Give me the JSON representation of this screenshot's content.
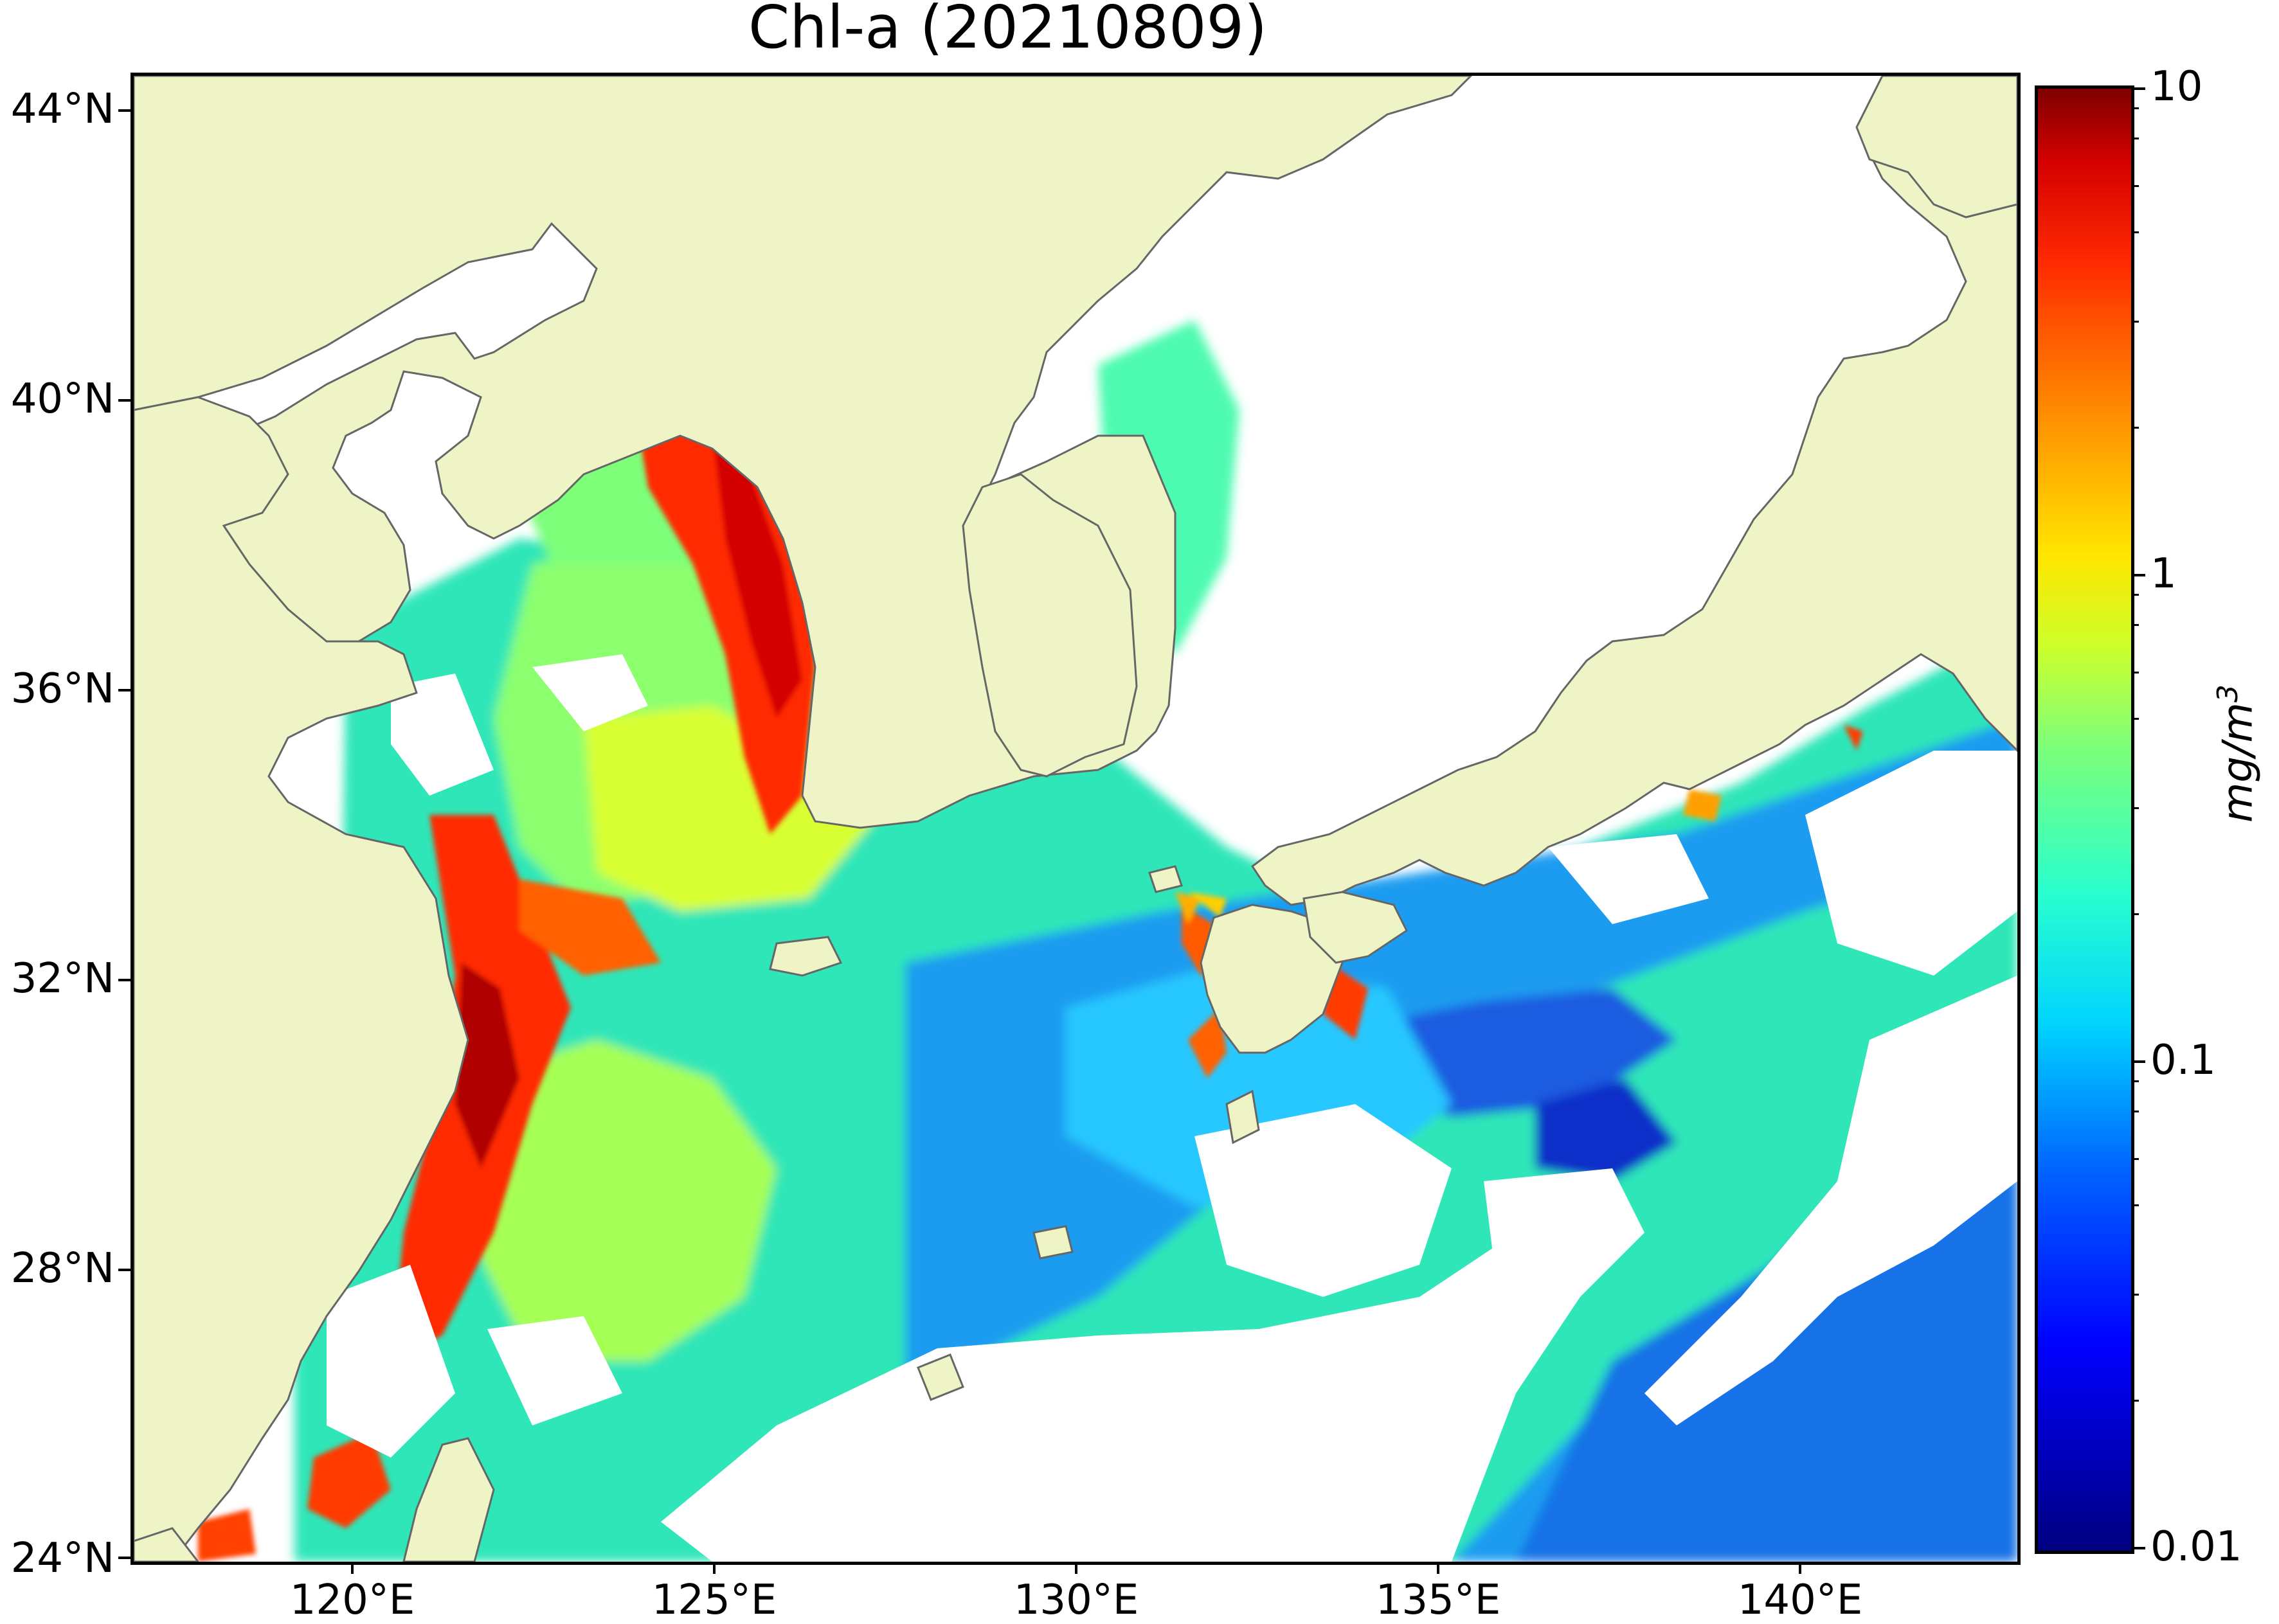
{
  "title": "Chl-a (20210809)",
  "y_axis": {
    "ticks": [
      {
        "label": "44°N",
        "lat": 44
      },
      {
        "label": "40°N",
        "lat": 40
      },
      {
        "label": "36°N",
        "lat": 36
      },
      {
        "label": "32°N",
        "lat": 32
      },
      {
        "label": "28°N",
        "lat": 28
      },
      {
        "label": "24°N",
        "lat": 24
      }
    ]
  },
  "x_axis": {
    "ticks": [
      {
        "label": "120°E",
        "lon": 120
      },
      {
        "label": "125°E",
        "lon": 125
      },
      {
        "label": "130°E",
        "lon": 130
      },
      {
        "label": "135°E",
        "lon": 135
      },
      {
        "label": "140°E",
        "lon": 140
      }
    ]
  },
  "extent": {
    "lon_min": 117,
    "lon_max": 143,
    "lat_min": 24,
    "lat_max": 44.5
  },
  "colorbar": {
    "scale": "log",
    "min": 0.01,
    "max": 10,
    "tick_labels": [
      "10",
      "1",
      "0.1",
      "0.01"
    ],
    "unit": "mg/m",
    "unit_superscript": "3",
    "colormap": "jet"
  },
  "colors": {
    "land": "#eff4c6",
    "no_data": "#ffffff",
    "coastline": "#666666"
  }
}
